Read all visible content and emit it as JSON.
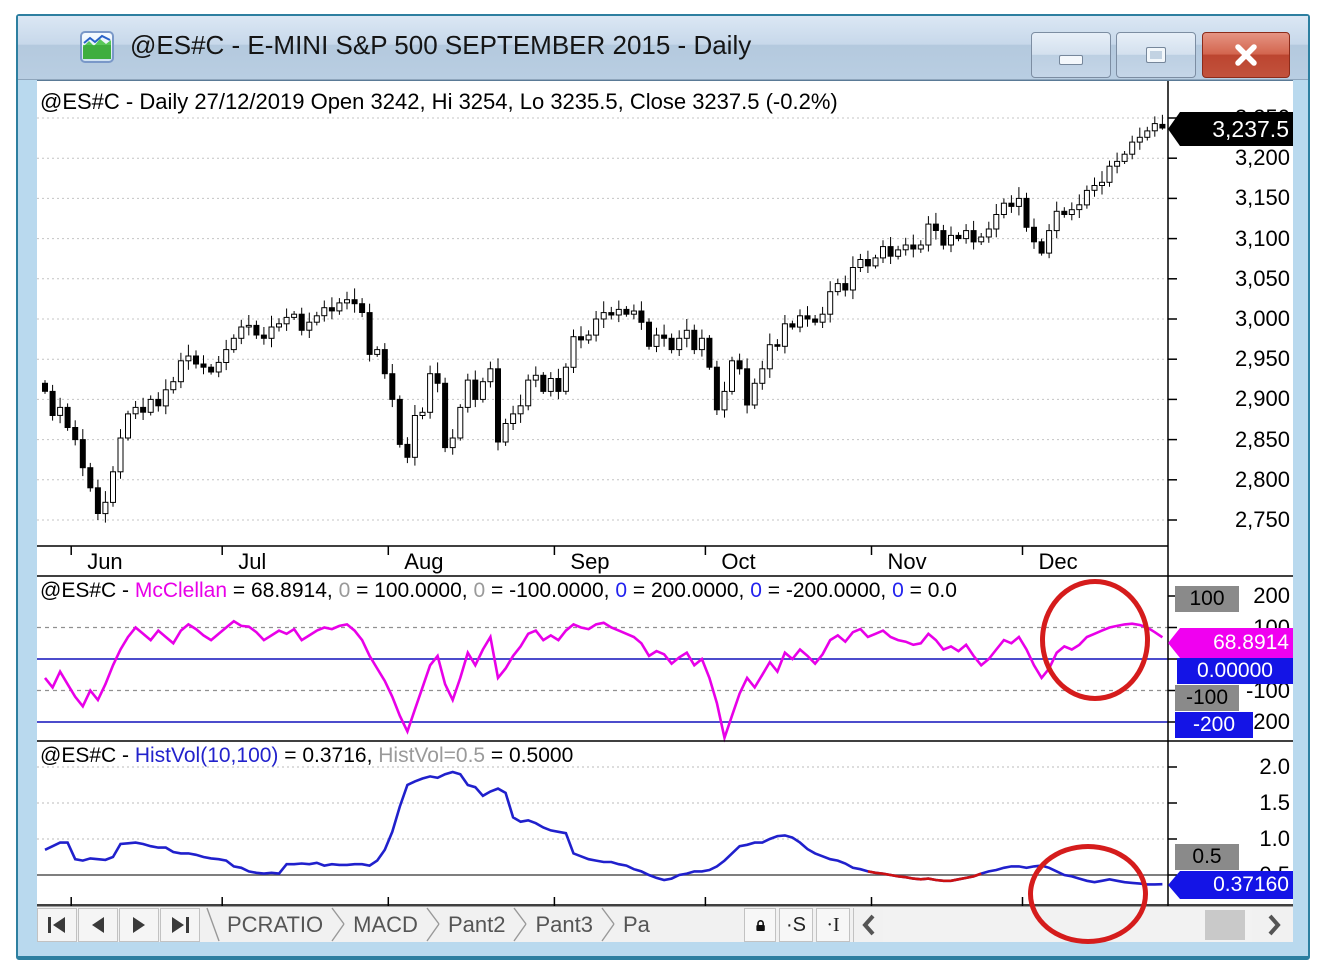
{
  "window": {
    "title": "@ES#C - E-MINI S&P 500 SEPTEMBER 2015 - Daily"
  },
  "main_chart": {
    "header": "@ES#C - Daily 27/12/2019 Open 3242, Hi 3254, Lo 3235.5, Close 3237.5 (-0.2%)",
    "badge": {
      "text": "3,237.5",
      "bg": "#000000",
      "fg": "#ffffff"
    },
    "axis_labels": [
      "3,250",
      "3,200",
      "3,150",
      "3,100",
      "3,050",
      "3,000",
      "2,950",
      "2,900",
      "2,850",
      "2,800",
      "2,750"
    ],
    "month_labels": [
      "Jun",
      "Jul",
      "Aug",
      "Sep",
      "Oct",
      "Nov",
      "Dec"
    ]
  },
  "mcclellan": {
    "header_segments": [
      {
        "text": "@ES#C - ",
        "color": "#000000"
      },
      {
        "text": "McClellan",
        "color": "#e800e8"
      },
      {
        "text": " = 68.8914, ",
        "color": "#000000"
      },
      {
        "text": "0",
        "color": "#9a9a9a"
      },
      {
        "text": " = 100.0000, ",
        "color": "#000000"
      },
      {
        "text": "0",
        "color": "#9a9a9a"
      },
      {
        "text": " = -100.0000, ",
        "color": "#000000"
      },
      {
        "text": "0",
        "color": "#2222ee"
      },
      {
        "text": " = 200.0000, ",
        "color": "#000000"
      },
      {
        "text": "0",
        "color": "#2222ee"
      },
      {
        "text": " = -200.0000, ",
        "color": "#000000"
      },
      {
        "text": "0",
        "color": "#2222ee"
      },
      {
        "text": " = 0.0",
        "color": "#000000"
      }
    ],
    "axis_labels": [
      "200",
      "100",
      "0",
      "-100",
      "-200"
    ],
    "badges": [
      {
        "text": "100",
        "bg": "#8a8a8a",
        "fg": "#000000"
      },
      {
        "text": "68.8914",
        "bg": "#f000f0",
        "fg": "#ffffff"
      },
      {
        "text": "0.00000",
        "bg": "#1414e6",
        "fg": "#ffffff"
      },
      {
        "text": "-100",
        "bg": "#8a8a8a",
        "fg": "#000000"
      },
      {
        "text": "-200",
        "bg": "#1414e6",
        "fg": "#ffffff"
      }
    ]
  },
  "histvol": {
    "header_segments": [
      {
        "text": "@ES#C - ",
        "color": "#000000"
      },
      {
        "text": "HistVol(10,100)",
        "color": "#2222cc"
      },
      {
        "text": " = 0.3716, ",
        "color": "#000000"
      },
      {
        "text": "HistVol=0.5",
        "color": "#9a9a9a"
      },
      {
        "text": " = 0.5000",
        "color": "#000000"
      }
    ],
    "axis_labels": [
      "2.0",
      "1.5",
      "1.0",
      "0.5"
    ],
    "badges": [
      {
        "text": "0.5",
        "bg": "#8a8a8a",
        "fg": "#000000"
      },
      {
        "text": "0.37160",
        "bg": "#1414e6",
        "fg": "#ffffff"
      }
    ]
  },
  "tabbar": {
    "tabs": [
      "PCRATIO",
      "MACD",
      "Pant2",
      "Pant3",
      "Pa"
    ],
    "s_button": "·S",
    "i_button": "·I"
  },
  "annotations": {
    "circle_color": "#d51c1c",
    "circles": [
      {
        "target": "mcclellan-recent-values"
      },
      {
        "target": "histvol-recent-values"
      }
    ]
  },
  "chart_data": [
    {
      "type": "candlestick",
      "title": "@ES#C Daily E-MINI S&P 500",
      "ylim": [
        2737,
        3262
      ],
      "y_ticks": [
        3250,
        3200,
        3150,
        3100,
        3050,
        3000,
        2950,
        2900,
        2850,
        2800,
        2750
      ],
      "months": [
        {
          "label": "Jun",
          "index": 4
        },
        {
          "label": "Jul",
          "index": 24
        },
        {
          "label": "Aug",
          "index": 46
        },
        {
          "label": "Sep",
          "index": 68
        },
        {
          "label": "Oct",
          "index": 88
        },
        {
          "label": "Nov",
          "index": 110
        },
        {
          "label": "Dec",
          "index": 130
        }
      ],
      "first_open": 2920,
      "closes": [
        2910,
        2880,
        2890,
        2865,
        2850,
        2815,
        2790,
        2758,
        2772,
        2810,
        2852,
        2882,
        2890,
        2884,
        2900,
        2892,
        2912,
        2922,
        2948,
        2954,
        2944,
        2940,
        2934,
        2946,
        2962,
        2976,
        2990,
        2992,
        2980,
        2976,
        2990,
        2994,
        3002,
        3006,
        2986,
        2996,
        3004,
        3014,
        3010,
        3020,
        3024,
        3019,
        3008,
        2956,
        2962,
        2932,
        2900,
        2844,
        2828,
        2880,
        2884,
        2932,
        2920,
        2840,
        2852,
        2890,
        2924,
        2900,
        2922,
        2938,
        2847,
        2870,
        2882,
        2892,
        2924,
        2930,
        2910,
        2926,
        2910,
        2940,
        2978,
        2974,
        2980,
        3000,
        3008,
        3005,
        3012,
        3006,
        3010,
        2996,
        2966,
        2980,
        2976,
        2962,
        2976,
        2986,
        2962,
        2976,
        2940,
        2887,
        2910,
        2948,
        2938,
        2893,
        2920,
        2938,
        2968,
        2966,
        2994,
        2990,
        3004,
        3000,
        2996,
        3006,
        3034,
        3044,
        3036,
        3064,
        3074,
        3066,
        3076,
        3090,
        3078,
        3086,
        3092,
        3087,
        3092,
        3118,
        3110,
        3092,
        3104,
        3100,
        3110,
        3096,
        3102,
        3112,
        3130,
        3144,
        3140,
        3150,
        3114,
        3096,
        3082,
        3110,
        3134,
        3130,
        3136,
        3142,
        3160,
        3166,
        3170,
        3190,
        3196,
        3205,
        3220,
        3226,
        3234,
        3243,
        3237.5
      ],
      "last": {
        "open": 3242,
        "high": 3254,
        "low": 3235.5,
        "close": 3237.5
      }
    },
    {
      "type": "line",
      "name": "McClellan",
      "color": "#e800e8",
      "last_value": 68.8914,
      "ylim": [
        -260,
        260
      ],
      "y_ticks": [
        200,
        100,
        0,
        -100,
        -200
      ],
      "dashed_levels": [
        100,
        -100
      ],
      "solid_levels": [
        0,
        -200
      ],
      "solid_color": "#1111bb",
      "values": [
        -60,
        -90,
        -40,
        -80,
        -120,
        -150,
        -100,
        -130,
        -80,
        -20,
        30,
        70,
        100,
        80,
        60,
        90,
        70,
        50,
        90,
        110,
        95,
        75,
        60,
        80,
        100,
        120,
        105,
        103,
        85,
        60,
        75,
        90,
        80,
        95,
        60,
        75,
        90,
        100,
        95,
        105,
        110,
        90,
        60,
        10,
        -30,
        -70,
        -120,
        -180,
        -230,
        -160,
        -90,
        -20,
        10,
        -80,
        -130,
        -60,
        20,
        -20,
        30,
        70,
        -60,
        -30,
        10,
        40,
        80,
        90,
        60,
        75,
        60,
        90,
        110,
        100,
        95,
        110,
        115,
        100,
        90,
        80,
        70,
        50,
        10,
        25,
        15,
        -15,
        5,
        20,
        -20,
        0,
        -60,
        -140,
        -250,
        -180,
        -110,
        -60,
        -90,
        -50,
        -10,
        -40,
        20,
        0,
        30,
        10,
        -15,
        15,
        60,
        75,
        55,
        85,
        95,
        70,
        80,
        90,
        70,
        60,
        55,
        45,
        50,
        80,
        60,
        30,
        40,
        25,
        45,
        10,
        -20,
        0,
        30,
        60,
        50,
        70,
        30,
        -20,
        -60,
        -30,
        20,
        40,
        30,
        45,
        70,
        80,
        90,
        100,
        105,
        110,
        112,
        108,
        100,
        85,
        68.8914
      ]
    },
    {
      "type": "line",
      "name": "HistVol(10,100)",
      "color": "#2020cc",
      "red_color": "#cc1111",
      "red_segment": [
        109,
        124
      ],
      "last_value": 0.3716,
      "ylim": [
        0.2,
        2.1
      ],
      "y_ticks": [
        2.0,
        1.5,
        1.0,
        0.5
      ],
      "dotted_levels": [
        2.0,
        1.5,
        1.0
      ],
      "solid_levels": [
        0.5
      ],
      "solid_color": "#555555",
      "values": [
        0.85,
        0.9,
        0.95,
        0.95,
        0.72,
        0.7,
        0.73,
        0.72,
        0.71,
        0.75,
        0.93,
        0.94,
        0.95,
        0.93,
        0.9,
        0.88,
        0.88,
        0.82,
        0.8,
        0.8,
        0.78,
        0.75,
        0.73,
        0.72,
        0.7,
        0.62,
        0.6,
        0.55,
        0.53,
        0.52,
        0.53,
        0.52,
        0.65,
        0.65,
        0.66,
        0.65,
        0.67,
        0.63,
        0.65,
        0.64,
        0.64,
        0.65,
        0.65,
        0.63,
        0.7,
        0.85,
        1.1,
        1.45,
        1.75,
        1.8,
        1.84,
        1.87,
        1.85,
        1.9,
        1.93,
        1.9,
        1.75,
        1.72,
        1.6,
        1.66,
        1.7,
        1.64,
        1.3,
        1.24,
        1.26,
        1.22,
        1.16,
        1.12,
        1.1,
        1.08,
        0.8,
        0.76,
        0.72,
        0.7,
        0.68,
        0.68,
        0.65,
        0.63,
        0.58,
        0.55,
        0.5,
        0.46,
        0.43,
        0.45,
        0.5,
        0.52,
        0.55,
        0.55,
        0.57,
        0.62,
        0.7,
        0.8,
        0.9,
        0.92,
        0.95,
        0.95,
        1.0,
        1.04,
        1.05,
        1.02,
        0.95,
        0.86,
        0.8,
        0.76,
        0.72,
        0.7,
        0.66,
        0.6,
        0.58,
        0.55,
        0.53,
        0.52,
        0.5,
        0.48,
        0.47,
        0.45,
        0.44,
        0.45,
        0.43,
        0.42,
        0.42,
        0.44,
        0.46,
        0.48,
        0.52,
        0.55,
        0.57,
        0.6,
        0.62,
        0.62,
        0.6,
        0.62,
        0.63,
        0.6,
        0.55,
        0.5,
        0.48,
        0.45,
        0.42,
        0.4,
        0.42,
        0.44,
        0.42,
        0.4,
        0.39,
        0.38,
        0.37,
        0.37,
        0.3716
      ]
    }
  ]
}
